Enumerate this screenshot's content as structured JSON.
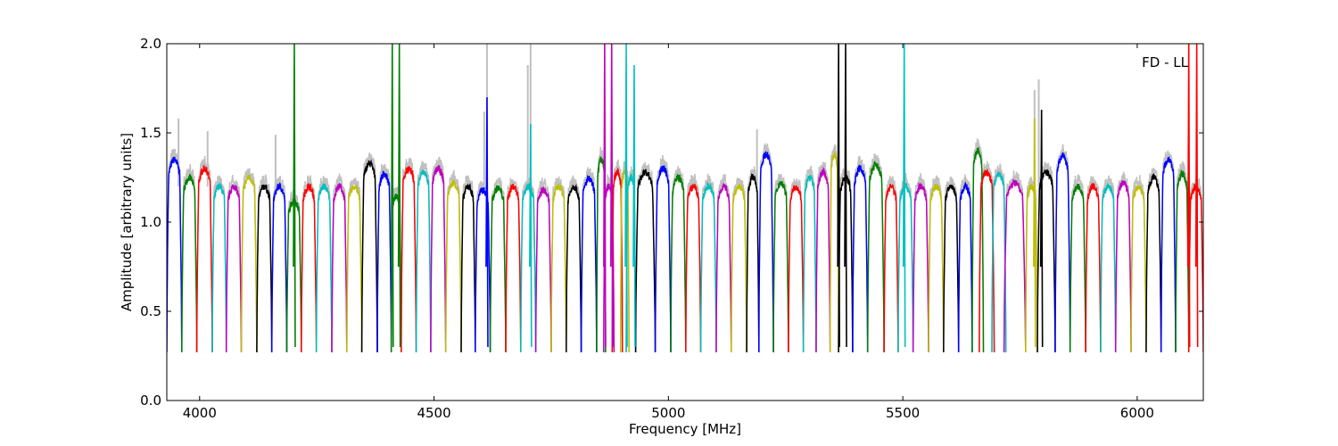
{
  "chart_data": {
    "type": "line",
    "title": "",
    "annotation": "FD - LL",
    "xlabel": "Frequency [MHz]",
    "ylabel": "Amplitude [arbitrary units]",
    "xlim": [
      3930,
      6141
    ],
    "ylim": [
      0.0,
      2.0
    ],
    "xticks": [
      4000,
      4500,
      5000,
      5500,
      6000
    ],
    "xtick_labels": [
      "4000",
      "4500",
      "5000",
      "5500",
      "6000"
    ],
    "yticks": [
      0.0,
      0.5,
      1.0,
      1.5,
      2.0
    ],
    "ytick_labels": [
      "0.0",
      "0.5",
      "1.0",
      "1.5",
      "2.0"
    ],
    "grid": false,
    "colors": {
      "b": "#0000ff",
      "g": "#008000",
      "r": "#ff0000",
      "c": "#00bfbf",
      "m": "#bf00bf",
      "y": "#bfbf00",
      "k": "#000000",
      "raw": "#c0c0c0"
    },
    "edge_min": 0.27,
    "windows": [
      {
        "start": 3930,
        "end": 3962,
        "color": "b",
        "level": 1.35
      },
      {
        "start": 3962,
        "end": 3994,
        "color": "g",
        "level": 1.25
      },
      {
        "start": 3994,
        "end": 4027,
        "color": "r",
        "level": 1.3
      },
      {
        "start": 4027,
        "end": 4057,
        "color": "c",
        "level": 1.2
      },
      {
        "start": 4057,
        "end": 4089,
        "color": "m",
        "level": 1.2
      },
      {
        "start": 4089,
        "end": 4122,
        "color": "y",
        "level": 1.25
      },
      {
        "start": 4122,
        "end": 4154,
        "color": "k",
        "level": 1.2
      },
      {
        "start": 4154,
        "end": 4186,
        "color": "b",
        "level": 1.2
      },
      {
        "start": 4186,
        "end": 4217,
        "color": "g",
        "level": 1.12
      },
      {
        "start": 4217,
        "end": 4249,
        "color": "r",
        "level": 1.2
      },
      {
        "start": 4249,
        "end": 4282,
        "color": "c",
        "level": 1.2
      },
      {
        "start": 4282,
        "end": 4314,
        "color": "m",
        "level": 1.2
      },
      {
        "start": 4314,
        "end": 4346,
        "color": "y",
        "level": 1.2
      },
      {
        "start": 4346,
        "end": 4379,
        "color": "k",
        "level": 1.33
      },
      {
        "start": 4379,
        "end": 4409,
        "color": "b",
        "level": 1.27
      },
      {
        "start": 4409,
        "end": 4430,
        "color": "g",
        "level": 1.15
      },
      {
        "start": 4430,
        "end": 4462,
        "color": "r",
        "level": 1.3
      },
      {
        "start": 4462,
        "end": 4493,
        "color": "c",
        "level": 1.28
      },
      {
        "start": 4493,
        "end": 4525,
        "color": "m",
        "level": 1.3
      },
      {
        "start": 4525,
        "end": 4558,
        "color": "y",
        "level": 1.22
      },
      {
        "start": 4558,
        "end": 4588,
        "color": "k",
        "level": 1.2
      },
      {
        "start": 4588,
        "end": 4620,
        "color": "b",
        "level": 1.18
      },
      {
        "start": 4620,
        "end": 4653,
        "color": "g",
        "level": 1.19
      },
      {
        "start": 4653,
        "end": 4685,
        "color": "r",
        "level": 1.2
      },
      {
        "start": 4685,
        "end": 4717,
        "color": "c",
        "level": 1.2
      },
      {
        "start": 4717,
        "end": 4750,
        "color": "m",
        "level": 1.18
      },
      {
        "start": 4750,
        "end": 4782,
        "color": "y",
        "level": 1.2
      },
      {
        "start": 4782,
        "end": 4814,
        "color": "k",
        "level": 1.2
      },
      {
        "start": 4814,
        "end": 4847,
        "color": "b",
        "level": 1.24
      },
      {
        "start": 4847,
        "end": 4866,
        "color": "g",
        "level": 1.35
      },
      {
        "start": 4862,
        "end": 4884,
        "color": "m",
        "level": 1.2
      },
      {
        "start": 4880,
        "end": 4902,
        "color": "r",
        "level": 1.28
      },
      {
        "start": 4898,
        "end": 4916,
        "color": "y",
        "level": 1.28
      },
      {
        "start": 4910,
        "end": 4930,
        "color": "c",
        "level": 1.25
      },
      {
        "start": 4930,
        "end": 4972,
        "color": "k",
        "level": 1.28
      },
      {
        "start": 4972,
        "end": 5005,
        "color": "b",
        "level": 1.3
      },
      {
        "start": 5005,
        "end": 5037,
        "color": "g",
        "level": 1.25
      },
      {
        "start": 5037,
        "end": 5069,
        "color": "r",
        "level": 1.2
      },
      {
        "start": 5069,
        "end": 5102,
        "color": "c",
        "level": 1.2
      },
      {
        "start": 5102,
        "end": 5134,
        "color": "m",
        "level": 1.2
      },
      {
        "start": 5134,
        "end": 5167,
        "color": "y",
        "level": 1.2
      },
      {
        "start": 5167,
        "end": 5193,
        "color": "k",
        "level": 1.25
      },
      {
        "start": 5193,
        "end": 5224,
        "color": "b",
        "level": 1.38
      },
      {
        "start": 5224,
        "end": 5256,
        "color": "g",
        "level": 1.22
      },
      {
        "start": 5256,
        "end": 5288,
        "color": "r",
        "level": 1.2
      },
      {
        "start": 5288,
        "end": 5315,
        "color": "c",
        "level": 1.25
      },
      {
        "start": 5315,
        "end": 5345,
        "color": "m",
        "level": 1.28
      },
      {
        "start": 5345,
        "end": 5363,
        "color": "y",
        "level": 1.38
      },
      {
        "start": 5363,
        "end": 5393,
        "color": "k",
        "level": 1.25
      },
      {
        "start": 5393,
        "end": 5425,
        "color": "b",
        "level": 1.3
      },
      {
        "start": 5425,
        "end": 5460,
        "color": "g",
        "level": 1.32
      },
      {
        "start": 5460,
        "end": 5490,
        "color": "r",
        "level": 1.2
      },
      {
        "start": 5490,
        "end": 5522,
        "color": "c",
        "level": 1.2
      },
      {
        "start": 5522,
        "end": 5555,
        "color": "m",
        "level": 1.2
      },
      {
        "start": 5555,
        "end": 5587,
        "color": "y",
        "level": 1.2
      },
      {
        "start": 5587,
        "end": 5619,
        "color": "k",
        "level": 1.2
      },
      {
        "start": 5619,
        "end": 5648,
        "color": "b",
        "level": 1.2
      },
      {
        "start": 5648,
        "end": 5672,
        "color": "g",
        "level": 1.4
      },
      {
        "start": 5663,
        "end": 5695,
        "color": "r",
        "level": 1.28
      },
      {
        "start": 5690,
        "end": 5720,
        "color": "c",
        "level": 1.27
      },
      {
        "start": 5716,
        "end": 5762,
        "color": "m",
        "level": 1.22
      },
      {
        "start": 5762,
        "end": 5787,
        "color": "y",
        "level": 1.2
      },
      {
        "start": 5787,
        "end": 5825,
        "color": "k",
        "level": 1.28
      },
      {
        "start": 5825,
        "end": 5857,
        "color": "b",
        "level": 1.37
      },
      {
        "start": 5857,
        "end": 5890,
        "color": "g",
        "level": 1.2
      },
      {
        "start": 5890,
        "end": 5922,
        "color": "r",
        "level": 1.2
      },
      {
        "start": 5922,
        "end": 5954,
        "color": "c",
        "level": 1.2
      },
      {
        "start": 5954,
        "end": 5987,
        "color": "m",
        "level": 1.22
      },
      {
        "start": 5987,
        "end": 6019,
        "color": "y",
        "level": 1.2
      },
      {
        "start": 6019,
        "end": 6051,
        "color": "k",
        "level": 1.25
      },
      {
        "start": 6051,
        "end": 6082,
        "color": "b",
        "level": 1.35
      },
      {
        "start": 6082,
        "end": 6110,
        "color": "g",
        "level": 1.27
      },
      {
        "start": 6110,
        "end": 6141,
        "color": "r",
        "level": 1.2
      }
    ],
    "spikes": [
      {
        "x": 4202,
        "y": 2.0,
        "color": "g"
      },
      {
        "x": 4411,
        "y": 2.0,
        "color": "g"
      },
      {
        "x": 4426,
        "y": 2.0,
        "color": "g"
      },
      {
        "x": 4613,
        "y": 1.7,
        "color": "b"
      },
      {
        "x": 4706,
        "y": 1.55,
        "color": "c"
      },
      {
        "x": 4864,
        "y": 2.0,
        "color": "m"
      },
      {
        "x": 4879,
        "y": 2.0,
        "color": "m"
      },
      {
        "x": 4910,
        "y": 2.0,
        "color": "c"
      },
      {
        "x": 4927,
        "y": 1.88,
        "color": "c"
      },
      {
        "x": 5363,
        "y": 2.0,
        "color": "k"
      },
      {
        "x": 5378,
        "y": 2.0,
        "color": "k"
      },
      {
        "x": 5503,
        "y": 2.0,
        "color": "c"
      },
      {
        "x": 5781,
        "y": 1.58,
        "color": "y"
      },
      {
        "x": 5796,
        "y": 1.63,
        "color": "k"
      },
      {
        "x": 6110,
        "y": 2.0,
        "color": "r"
      },
      {
        "x": 6127,
        "y": 2.0,
        "color": "r"
      }
    ],
    "raw_spikes": [
      {
        "x": 3955,
        "y": 1.58
      },
      {
        "x": 4017,
        "y": 1.51
      },
      {
        "x": 4162,
        "y": 1.49
      },
      {
        "x": 4613,
        "y": 2.0
      },
      {
        "x": 4607,
        "y": 1.62
      },
      {
        "x": 4700,
        "y": 1.88
      },
      {
        "x": 4706,
        "y": 2.0
      },
      {
        "x": 5189,
        "y": 1.52
      },
      {
        "x": 5781,
        "y": 1.74
      },
      {
        "x": 5790,
        "y": 1.8
      }
    ]
  }
}
